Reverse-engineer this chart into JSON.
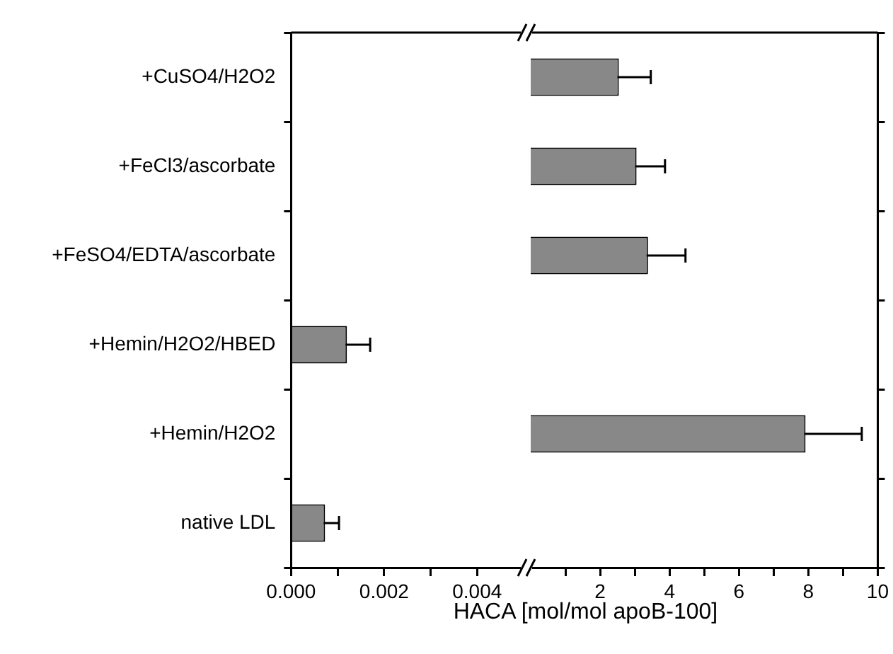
{
  "chart_data": [
    {
      "type": "bar",
      "orientation": "horizontal",
      "categories": [
        "+CuSO4/H2O2",
        "+FeCl3/ascorbate",
        "+FeSO4/EDTA/ascorbate",
        "+Hemin/H2O2/HBED",
        "+Hemin/H2O2",
        "native LDL"
      ],
      "values": [
        null,
        null,
        null,
        0.0012,
        null,
        0.00073
      ],
      "errors": [
        null,
        null,
        null,
        0.0005,
        null,
        0.0003
      ],
      "color": "#888888",
      "xlim": [
        0,
        0.005
      ],
      "xticks": [
        {
          "value": 0,
          "label": "0.000"
        },
        {
          "value": 0.001,
          "label": null
        },
        0.002,
        {
          "value": 0.003,
          "label": null
        },
        0.004
      ]
    },
    {
      "type": "bar",
      "orientation": "horizontal",
      "categories": [
        null,
        null,
        null,
        null,
        null,
        null
      ],
      "values": [
        2.54,
        3.05,
        3.38,
        null,
        7.92,
        null
      ],
      "errors": [
        0.92,
        0.82,
        1.08,
        null,
        1.62,
        null
      ],
      "color": "#888888",
      "xlim": [
        0,
        10
      ],
      "xticks": [
        {
          "value": 1,
          "label": null
        },
        2,
        {
          "value": 3,
          "label": null
        },
        4,
        {
          "value": 5,
          "label": null
        },
        6,
        {
          "value": 7,
          "label": null
        },
        8,
        {
          "value": 9,
          "label": null
        },
        10
      ],
      "xlabel": "HACA [mol/mol apoB-100]",
      "tick_labels": "x"
    }
  ]
}
